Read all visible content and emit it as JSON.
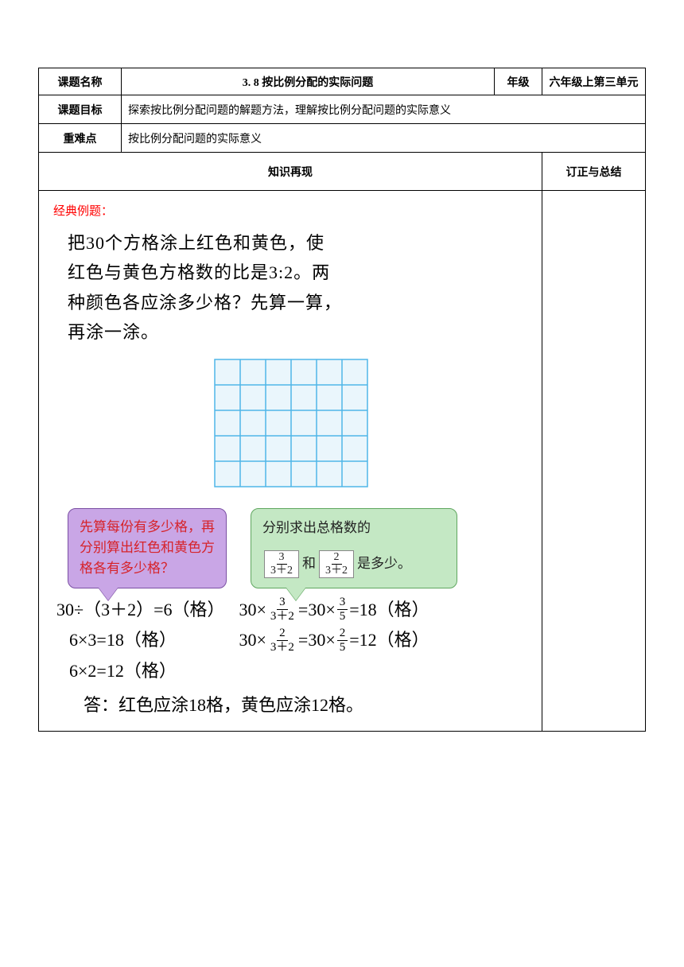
{
  "header": {
    "name_label": "课题名称",
    "title": "3. 8 按比例分配的实际问题",
    "grade_label": "年级",
    "grade_value": "六年级上第三单元",
    "goal_label": "课题目标",
    "goal_value": "探索按比例分配问题的解题方法，理解按比例分配问题的实际意义",
    "difficulty_label": "重难点",
    "difficulty_value": "按比例分配问题的实际意义",
    "section_left": "知识再现",
    "section_right": "订正与总结"
  },
  "example": {
    "label": "经典例题：",
    "problem_l1": "把30个方格涂上红色和黄色，使",
    "problem_l2": "红色与黄色方格数的比是3:2。两",
    "problem_l3": "种颜色各应涂多少格？先算一算，",
    "problem_l4": "再涂一涂。"
  },
  "grid": {
    "cols": 6,
    "rows": 5,
    "cell_size": 32,
    "line_color": "#4fb6e8",
    "bg_color": "#eaf6fc"
  },
  "bubbles": {
    "purple_text": "先算每份有多少格，再分别算出红色和黄色方格各有多少格？",
    "purple_bg": "#c9a6e6",
    "purple_border": "#7a4fa3",
    "purple_text_color": "#d6232a",
    "green_pre": "分别求出总格数的",
    "green_mid": "和",
    "green_post": "是多少。",
    "green_bg": "#c4e8c4",
    "green_border": "#5fa65f",
    "frac1_n": "3",
    "frac1_d": "3＋2",
    "frac2_n": "2",
    "frac2_d": "3＋2"
  },
  "calc": {
    "left1": "30÷（3＋2）=6（格）",
    "left2": "6×3=18（格）",
    "left3": "6×2=12（格）",
    "r1_a": "30×",
    "r1_f1n": "3",
    "r1_f1d": "3＋2",
    "r1_b": "=30×",
    "r1_f2n": "3",
    "r1_f2d": "5",
    "r1_c": " =18（格）",
    "r2_a": "30×",
    "r2_f1n": "2",
    "r2_f1d": "3＋2",
    "r2_b": " =30×",
    "r2_f2n": "2",
    "r2_f2d": "5",
    "r2_c": " =12（格）",
    "answer": "答：红色应涂18格，黄色应涂12格。"
  }
}
